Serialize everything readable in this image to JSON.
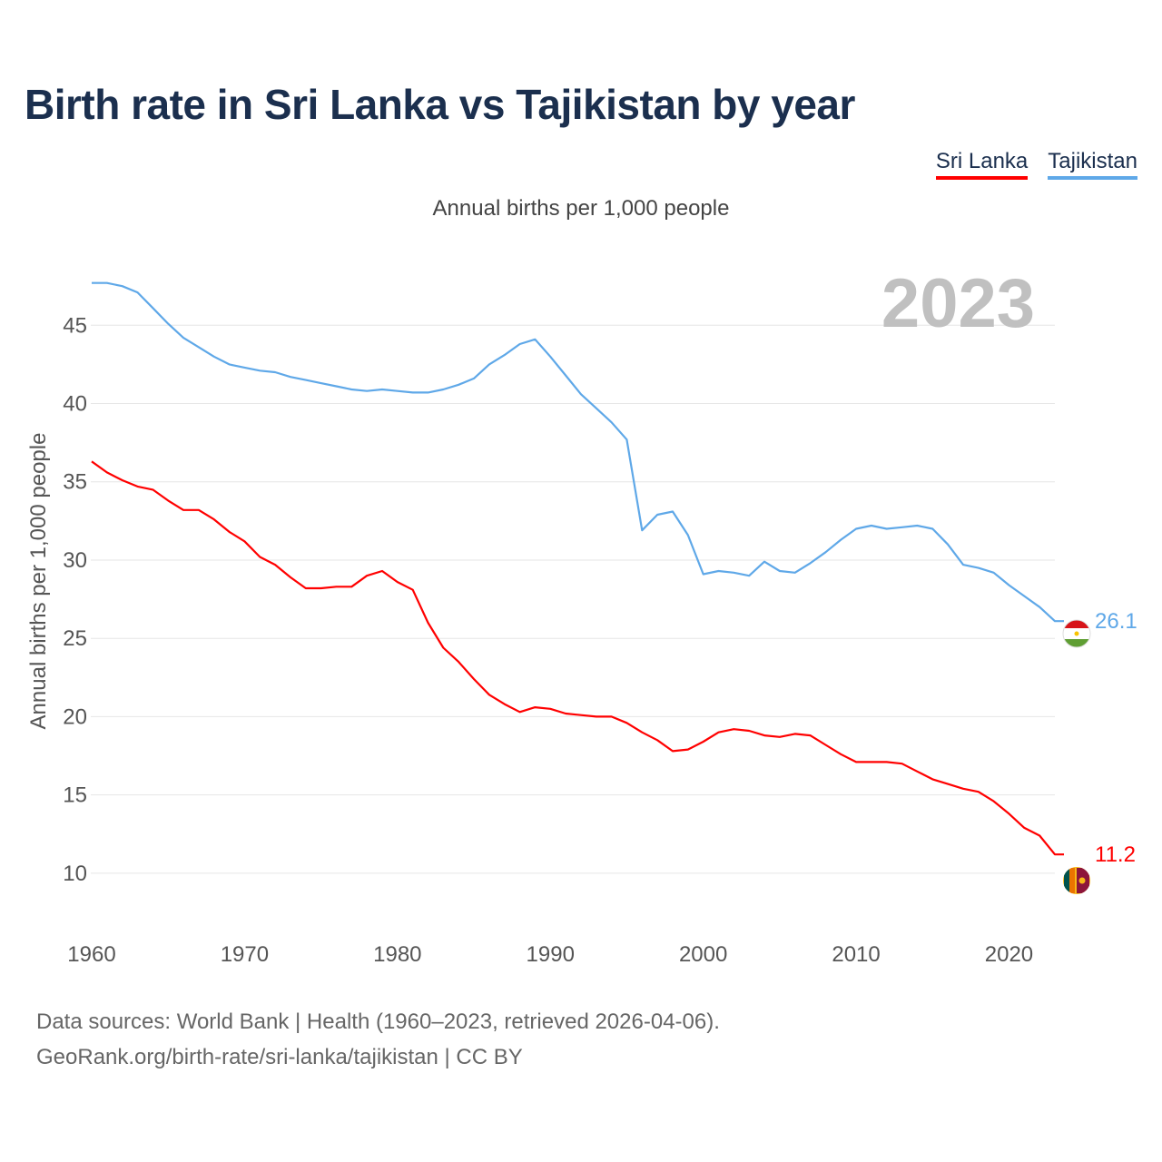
{
  "title": "Birth rate in Sri Lanka vs Tajikistan by year",
  "subtitle": "Annual births per 1,000 people",
  "legend": [
    {
      "label": "Sri Lanka",
      "color": "#ff0000"
    },
    {
      "label": "Tajikistan",
      "color": "#5fa8e8"
    }
  ],
  "source": {
    "line1": "Data sources: World Bank | Health (1960–2023, retrieved 2026-04-06).",
    "line2": "GeoRank.org/birth-rate/sri-lanka/tajikistan | CC BY"
  },
  "chart_data": {
    "type": "line",
    "title": "Birth rate in Sri Lanka vs Tajikistan by year",
    "ylabel": "Annual births per 1,000 people",
    "xlabel": "",
    "year_label": "2023",
    "xlim": [
      1960,
      2023
    ],
    "ylim": [
      7.5,
      47.8
    ],
    "x_ticks": [
      1960,
      1970,
      1980,
      1990,
      2000,
      2010,
      2020
    ],
    "y_ticks": [
      10,
      15,
      20,
      25,
      30,
      35,
      40,
      45
    ],
    "x": [
      1960,
      1961,
      1962,
      1963,
      1964,
      1965,
      1966,
      1967,
      1968,
      1969,
      1970,
      1971,
      1972,
      1973,
      1974,
      1975,
      1976,
      1977,
      1978,
      1979,
      1980,
      1981,
      1982,
      1983,
      1984,
      1985,
      1986,
      1987,
      1988,
      1989,
      1990,
      1991,
      1992,
      1993,
      1994,
      1995,
      1996,
      1997,
      1998,
      1999,
      2000,
      2001,
      2002,
      2003,
      2004,
      2005,
      2006,
      2007,
      2008,
      2009,
      2010,
      2011,
      2012,
      2013,
      2014,
      2015,
      2016,
      2017,
      2018,
      2019,
      2020,
      2021,
      2022,
      2023
    ],
    "series": [
      {
        "name": "Sri Lanka",
        "color": "#ff0000",
        "end_label": "11.2",
        "values": [
          36.3,
          35.6,
          35.1,
          34.7,
          34.5,
          33.8,
          33.2,
          33.2,
          32.6,
          31.8,
          31.2,
          30.2,
          29.7,
          28.9,
          28.2,
          28.2,
          28.3,
          28.3,
          29.0,
          29.3,
          28.6,
          28.1,
          26.0,
          24.4,
          23.5,
          22.4,
          21.4,
          20.8,
          20.3,
          20.6,
          20.5,
          20.2,
          20.1,
          20.0,
          20.0,
          19.6,
          19.0,
          18.5,
          17.8,
          17.9,
          18.4,
          19.0,
          19.2,
          19.1,
          18.8,
          18.7,
          18.9,
          18.8,
          18.2,
          17.6,
          17.1,
          17.1,
          17.1,
          17.0,
          16.5,
          16.0,
          15.7,
          15.4,
          15.2,
          14.6,
          13.8,
          12.9,
          12.4,
          11.2
        ]
      },
      {
        "name": "Tajikistan",
        "color": "#5fa8e8",
        "end_label": "26.1",
        "values": [
          47.7,
          47.7,
          47.5,
          47.1,
          46.1,
          45.1,
          44.2,
          43.6,
          43.0,
          42.5,
          42.3,
          42.1,
          42.0,
          41.7,
          41.5,
          41.3,
          41.1,
          40.9,
          40.8,
          40.9,
          40.8,
          40.7,
          40.7,
          40.9,
          41.2,
          41.6,
          42.5,
          43.1,
          43.8,
          44.1,
          43.0,
          41.8,
          40.6,
          39.7,
          38.8,
          37.7,
          31.9,
          32.9,
          33.1,
          31.6,
          29.1,
          29.3,
          29.2,
          29.0,
          29.9,
          29.3,
          29.2,
          29.8,
          30.5,
          31.3,
          32.0,
          32.2,
          32.0,
          32.1,
          32.2,
          32.0,
          31.0,
          29.7,
          29.5,
          29.2,
          28.4,
          27.7,
          27.0,
          26.1
        ]
      }
    ]
  }
}
